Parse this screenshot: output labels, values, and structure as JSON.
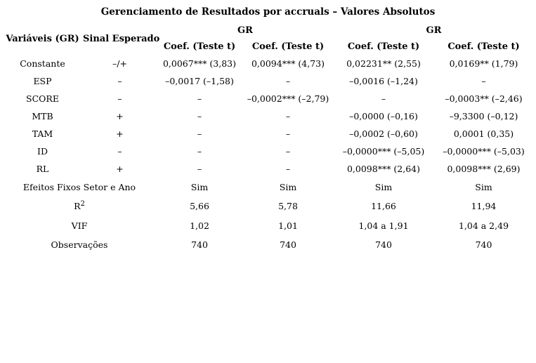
{
  "title": "Gerenciamento de Resultados por accruals – Valores Absolutos",
  "table": {
    "headers": {
      "variables": "Variáveis (GR)",
      "expected_sign": "Sinal Esperado",
      "group1": "GR",
      "group2": "GR",
      "coef1": "Coef. (Teste t)",
      "coef2": "Coef. (Teste t)",
      "coef3": "Coef. (Teste t)",
      "coef4": "Coef. (Teste t)"
    },
    "rows": [
      {
        "variable": "Constante",
        "sign": "–/+",
        "values": [
          "0,0067*** (3,83)",
          "0,0094*** (4,73)",
          "0,02231** (2,55)",
          "0,0169** (1,79)"
        ]
      },
      {
        "variable": "ESP",
        "sign": "–",
        "values": [
          "–0,0017 (–1,58)",
          "–",
          "–0,0016 (–1,24)",
          "–"
        ]
      },
      {
        "variable": "SCORE",
        "sign": "–",
        "values": [
          "–",
          "–0,0002*** (–2,79)",
          "–",
          "–0,0003** (–2,46)"
        ]
      },
      {
        "variable": "MTB",
        "sign": "+",
        "values": [
          "–",
          "–",
          "–0,0000 (–0,16)",
          "–9,3300 (–0,12)"
        ]
      },
      {
        "variable": "TAM",
        "sign": "+",
        "values": [
          "–",
          "–",
          "–0,0002 (–0,60)",
          "0,0001 (0,35)"
        ]
      },
      {
        "variable": "ID",
        "sign": "–",
        "values": [
          "–",
          "–",
          "–0,0000*** (–5,05)",
          "–0,0000*** (–5,03)"
        ]
      },
      {
        "variable": "RL",
        "sign": "+",
        "values": [
          "–",
          "–",
          "0,0098*** (2,64)",
          "0,0098*** (2,69)"
        ]
      }
    ],
    "summary": {
      "fixed_effects": {
        "label": "Efeitos Fixos Setor e Ano",
        "values": [
          "Sim",
          "Sim",
          "Sim",
          "Sim"
        ]
      },
      "r2": {
        "label": "R",
        "label_sup": "2",
        "values": [
          "5,66",
          "5,78",
          "11,66",
          "11,94"
        ]
      },
      "vif": {
        "label": "VIF",
        "values": [
          "1,02",
          "1,01",
          "1,04 a 1,91",
          "1,04 a 2,49"
        ]
      },
      "observations": {
        "label": "Observações",
        "values": [
          "740",
          "740",
          "740",
          "740"
        ]
      }
    }
  },
  "colors": {
    "text": "#000000",
    "background": "#ffffff"
  }
}
